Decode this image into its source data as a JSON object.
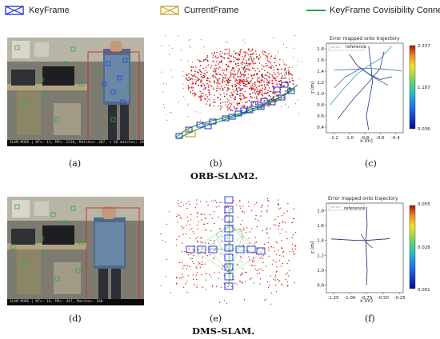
{
  "legend": {
    "keyframe": "KeyFrame",
    "currentframe": "CurrentFrame",
    "covisibility": "KeyFrame Covisibility Connect",
    "keyframe_color": "#1f2bd6",
    "currentframe_color": "#c9a227",
    "covisibility_color": "#1fa64a"
  },
  "panels": {
    "a": "(a)",
    "b": "(b)",
    "c": "(c)",
    "d": "(d)",
    "e": "(e)",
    "f": "(f)"
  },
  "captions": {
    "top": "ORB-SLAM2.",
    "bottom": "DMS-SLAM."
  },
  "camera_status": {
    "top": "SLAM MODE | KFs: 11, MPs: 1536, Matches: 307, + VO matches: 106",
    "bottom": "SLAM MODE | KFs: 16, MPs: 447, Matches: 160"
  },
  "chart_data": [
    {
      "type": "line",
      "panel": "(c)",
      "title": "Error mapped onto trajectory",
      "legend": [
        "reference"
      ],
      "xlabel": "x (m)",
      "ylabel": "z (m)",
      "xticks": [
        "-1.2",
        "-1.0",
        "-0.8",
        "-0.6",
        "-0.4"
      ],
      "yticks": [
        "0.4",
        "0.6",
        "0.8",
        "1.0",
        "1.2",
        "1.4",
        "1.6",
        "1.8"
      ],
      "xlim": [
        -1.3,
        -0.3
      ],
      "ylim": [
        0.3,
        1.9
      ],
      "colorbar": {
        "min": 0.036,
        "mid": 1.187,
        "max": 2.337,
        "labels": [
          "2.337",
          "1.187",
          "0.036"
        ]
      },
      "series": [
        {
          "x": [
            -0.75,
            -0.72,
            -0.7,
            -0.74,
            -0.78,
            -0.75
          ],
          "y": [
            1.85,
            1.5,
            1.2,
            0.9,
            0.6,
            0.35
          ]
        },
        {
          "x": [
            -1.2,
            -1.0,
            -0.8,
            -0.6,
            -0.4,
            -0.32
          ],
          "y": [
            1.42,
            1.43,
            1.45,
            1.44,
            1.42,
            1.4
          ]
        },
        {
          "x": [
            -1.25,
            -1.1,
            -0.9,
            -0.75,
            -0.6,
            -0.45
          ],
          "y": [
            0.8,
            1.05,
            1.35,
            1.5,
            1.62,
            1.85
          ]
        },
        {
          "x": [
            -1.15,
            -0.95,
            -0.75,
            -0.6,
            -0.55
          ],
          "y": [
            0.55,
            0.9,
            1.2,
            1.45,
            1.75
          ]
        },
        {
          "x": [
            -1.2,
            -1.05,
            -0.85,
            -0.7,
            -0.5
          ],
          "y": [
            1.1,
            1.3,
            1.45,
            1.3,
            1.15
          ]
        },
        {
          "x": [
            -1.0,
            -0.9,
            -0.75,
            -0.6,
            -0.45
          ],
          "y": [
            1.7,
            1.5,
            1.35,
            1.25,
            1.3
          ]
        }
      ]
    },
    {
      "type": "line",
      "panel": "(f)",
      "title": "Error mapped onto trajectory",
      "legend": [
        "reference"
      ],
      "xlabel": "x (m)",
      "ylabel": "z (m)",
      "xticks": [
        "-1.25",
        "-1.00",
        "-0.75",
        "-0.50",
        "-0.25"
      ],
      "yticks": [
        "0.8",
        "1.0",
        "1.2",
        "1.4",
        "1.6",
        "1.8"
      ],
      "xlim": [
        -1.35,
        -0.2
      ],
      "ylim": [
        0.7,
        1.9
      ],
      "colorbar": {
        "min": 0.001,
        "mid": 0.028,
        "max": 0.055,
        "labels": [
          "0.055",
          "0.028",
          "0.001"
        ]
      },
      "series": [
        {
          "x": [
            -0.75,
            -0.74,
            -0.76,
            -0.75,
            -0.74,
            -0.75
          ],
          "y": [
            1.85,
            1.6,
            1.4,
            1.2,
            1.0,
            0.8
          ]
        },
        {
          "x": [
            -1.28,
            -1.1,
            -0.9,
            -0.75,
            -0.6,
            -0.45,
            -0.4
          ],
          "y": [
            1.42,
            1.41,
            1.4,
            1.4,
            1.41,
            1.42,
            1.43
          ]
        },
        {
          "x": [
            -0.83,
            -0.79,
            -0.75,
            -0.7,
            -0.66
          ],
          "y": [
            1.48,
            1.42,
            1.37,
            1.33,
            1.3
          ]
        }
      ]
    }
  ]
}
